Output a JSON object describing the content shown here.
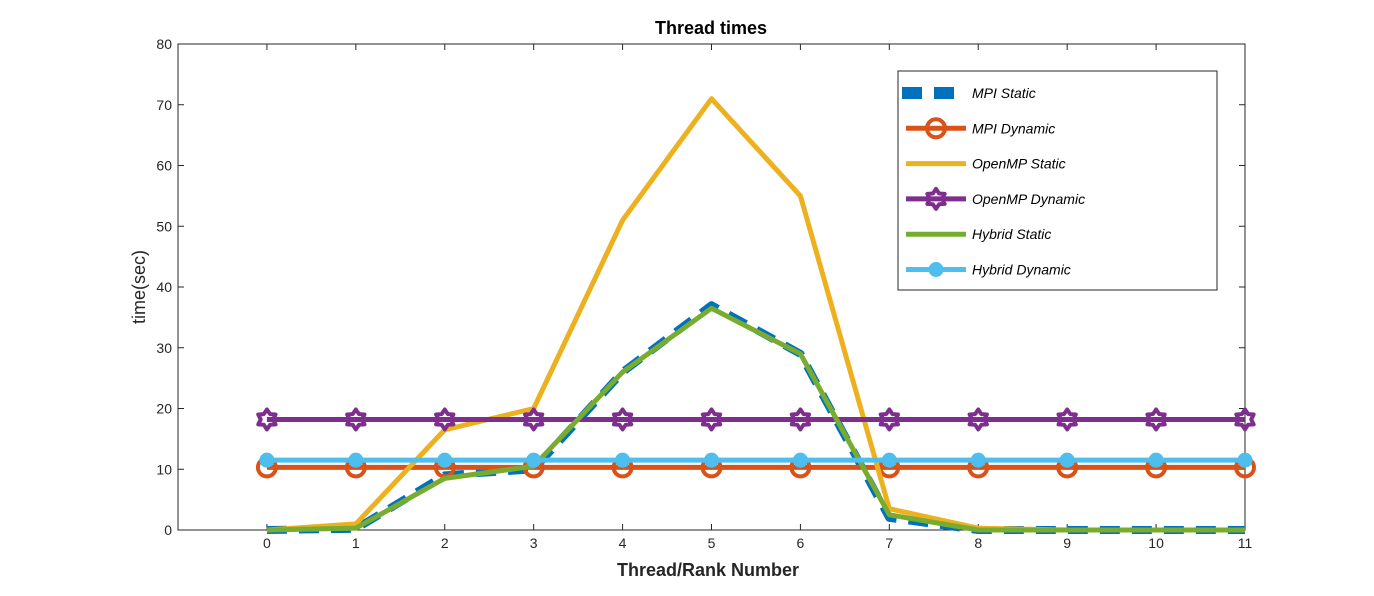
{
  "chart_data": {
    "type": "line",
    "title": "Thread times",
    "xlabel": "Thread/Rank Number",
    "ylabel": "time(sec)",
    "x": [
      0,
      1,
      2,
      3,
      4,
      5,
      6,
      7,
      8,
      9,
      10,
      11
    ],
    "xlim": [
      -1,
      11
    ],
    "ylim": [
      0,
      80
    ],
    "xticks": [
      0,
      1,
      2,
      3,
      4,
      5,
      6,
      7,
      8,
      9,
      10,
      11
    ],
    "yticks": [
      0,
      10,
      20,
      30,
      40,
      50,
      60,
      70,
      80
    ],
    "grid": false,
    "legend_location": "top-right",
    "series": [
      {
        "name": "MPI Static",
        "color": "#0072BD",
        "style": "dashed",
        "marker": "none",
        "values": [
          0,
          0.2,
          9,
          10,
          26,
          37,
          29,
          2,
          0,
          0,
          0,
          0
        ]
      },
      {
        "name": "MPI Dynamic",
        "color": "#D95319",
        "style": "solid",
        "marker": "circle",
        "values": [
          10.3,
          10.3,
          10.3,
          10.3,
          10.3,
          10.3,
          10.3,
          10.3,
          10.3,
          10.3,
          10.3,
          10.3
        ]
      },
      {
        "name": "OpenMP Static",
        "color": "#EDB120",
        "style": "solid",
        "marker": "none",
        "values": [
          0,
          1,
          16.5,
          20,
          51,
          71,
          55,
          3.5,
          0.3,
          0,
          0,
          0
        ]
      },
      {
        "name": "OpenMP Dynamic",
        "color": "#7E2F8E",
        "style": "solid",
        "marker": "hexagram",
        "values": [
          18.2,
          18.2,
          18.2,
          18.2,
          18.2,
          18.2,
          18.2,
          18.2,
          18.2,
          18.2,
          18.2,
          18.2
        ]
      },
      {
        "name": "Hybrid Static",
        "color": "#77AC30",
        "style": "solid",
        "marker": "none",
        "values": [
          0,
          0.3,
          8.5,
          10.5,
          26,
          36.5,
          29,
          2.5,
          0,
          0,
          0,
          0
        ]
      },
      {
        "name": "Hybrid Dynamic",
        "color": "#4DBEEE",
        "style": "solid",
        "marker": "dot",
        "values": [
          11.5,
          11.5,
          11.5,
          11.5,
          11.5,
          11.5,
          11.5,
          11.5,
          11.5,
          11.5,
          11.5,
          11.5
        ]
      }
    ]
  }
}
